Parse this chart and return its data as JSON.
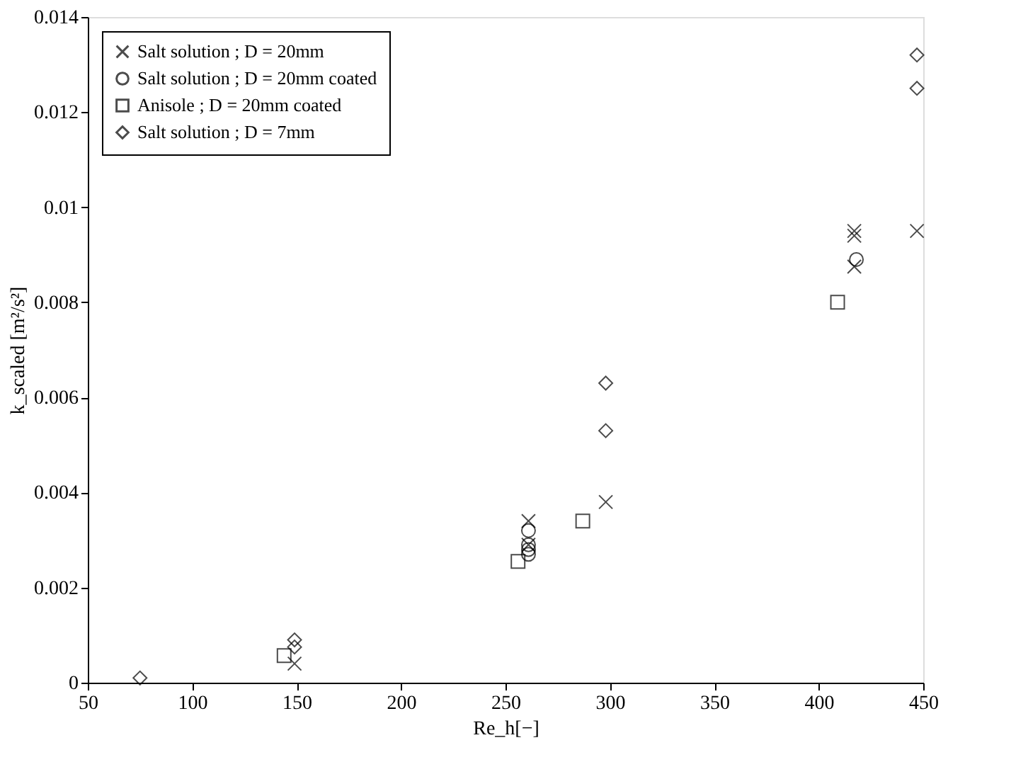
{
  "chart_data": {
    "type": "scatter",
    "xlabel": "Re_h[−]",
    "ylabel": "k_scaled  [m²/s²]",
    "xlim": [
      50,
      450
    ],
    "xticks": [
      50,
      100,
      150,
      200,
      250,
      300,
      350,
      400,
      450
    ],
    "ylim": [
      0,
      0.014
    ],
    "yticks": [
      0,
      0.002,
      0.004,
      0.006,
      0.008,
      0.01,
      0.012,
      0.014
    ],
    "grid": false,
    "legend": "top left",
    "series": [
      {
        "name": "Salt solution ; D = 20mm",
        "color": "#000000",
        "marker": "cross",
        "x": [
          149,
          261,
          261,
          298,
          417,
          417,
          417,
          447
        ],
        "values": [
          0.0004,
          0.0034,
          0.0029,
          0.0038,
          0.0095,
          0.0094,
          0.00875,
          0.0095
        ]
      },
      {
        "name": "Salt solution ; D = 20mm coated",
        "color": "#000000",
        "marker": "circle",
        "x": [
          261,
          261,
          261,
          261,
          418
        ],
        "values": [
          0.0032,
          0.0029,
          0.0028,
          0.0027,
          0.0089
        ]
      },
      {
        "name": "Anisole       ; D = 20mm coated",
        "color": "#000000",
        "marker": "square",
        "x": [
          144,
          256,
          287,
          409
        ],
        "values": [
          0.00057,
          0.00255,
          0.0034,
          0.008
        ]
      },
      {
        "name": "Salt solution ; D = 7mm",
        "color": "#000000",
        "marker": "diamond",
        "x": [
          75,
          149,
          149,
          298,
          298,
          447,
          447
        ],
        "values": [
          0.0001,
          0.00075,
          0.0009,
          0.0053,
          0.0063,
          0.0125,
          0.0132
        ]
      }
    ]
  }
}
